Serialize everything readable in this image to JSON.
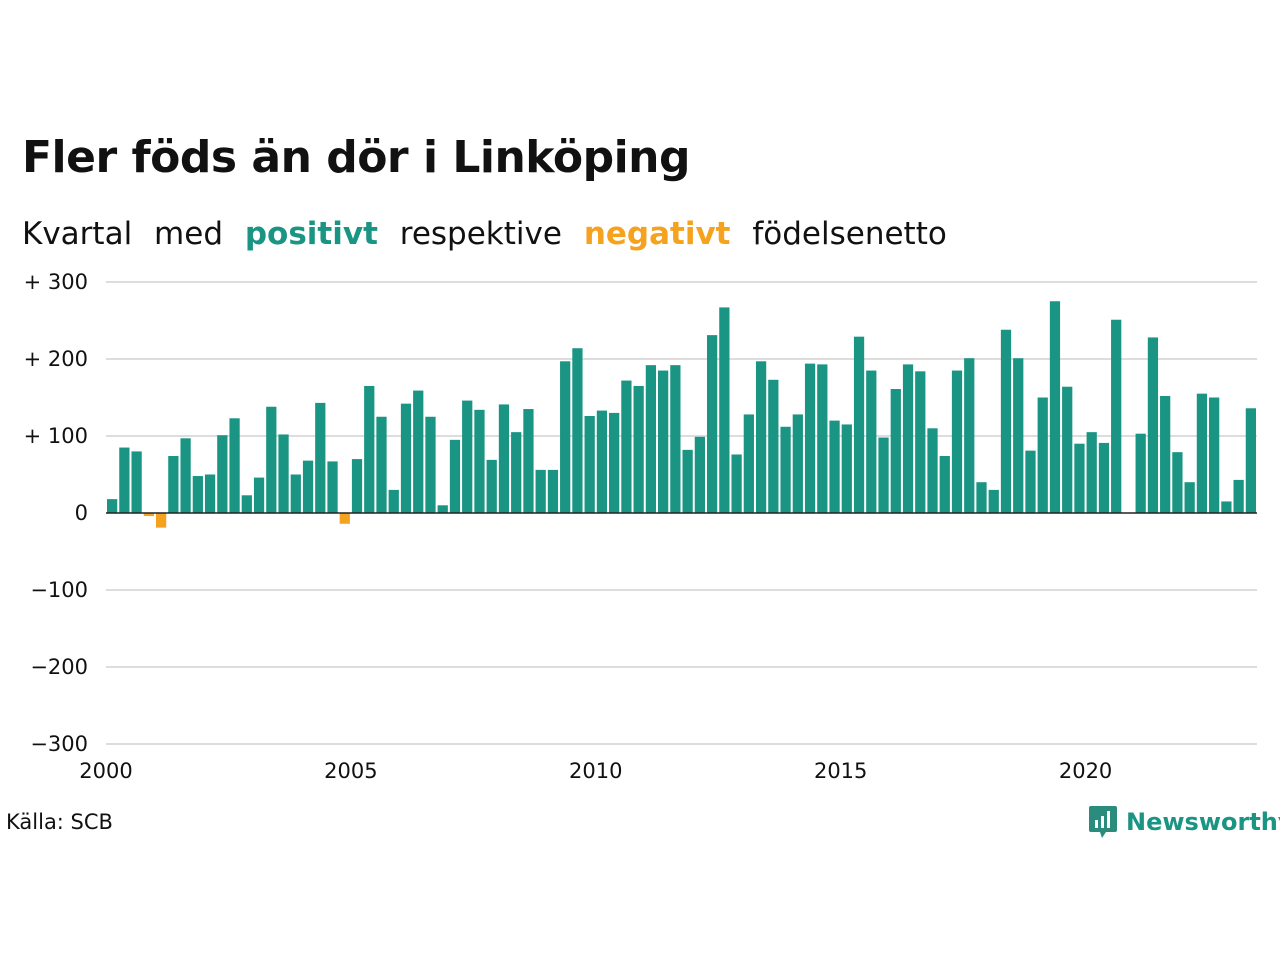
{
  "title": "Fler föds än dör i Linköping",
  "subtitle": {
    "w1": "Kvartal",
    "w2": "med",
    "positive": "positivt",
    "w3": "respektive",
    "negative": "negativt",
    "w4": "födelsenetto"
  },
  "colors": {
    "positive": "#1a9483",
    "negative": "#f5a21f",
    "grid": "#dddddd",
    "text": "#111111"
  },
  "source": "Källa: SCB",
  "logo": {
    "text": "Newsworthy",
    "icon": "bar-chart-speech-bubble-icon"
  },
  "chart_data": {
    "type": "bar",
    "xlabel": "",
    "ylabel": "",
    "ylim": [
      -300,
      300
    ],
    "yticks": [
      {
        "value": 300,
        "label": "+ 300"
      },
      {
        "value": 200,
        "label": "+ 200"
      },
      {
        "value": 100,
        "label": "+ 100"
      },
      {
        "value": 0,
        "label": "0"
      },
      {
        "value": -100,
        "label": "−100"
      },
      {
        "value": -200,
        "label": "−200"
      },
      {
        "value": -300,
        "label": "−300"
      }
    ],
    "xticks": [
      "2000",
      "2005",
      "2010",
      "2015",
      "2020"
    ],
    "xlim": [
      "2000 Q1",
      "2023 Q2"
    ],
    "grid": true,
    "series": [
      {
        "x": [
          "2000 Q1",
          "2000 Q2",
          "2000 Q3",
          "2000 Q4",
          "2001 Q1",
          "2001 Q2",
          "2001 Q3",
          "2001 Q4",
          "2002 Q1",
          "2002 Q2",
          "2002 Q3",
          "2002 Q4",
          "2003 Q1",
          "2003 Q2",
          "2003 Q3",
          "2003 Q4",
          "2004 Q1",
          "2004 Q2",
          "2004 Q3",
          "2004 Q4",
          "2005 Q1",
          "2005 Q2",
          "2005 Q3",
          "2005 Q4",
          "2006 Q1",
          "2006 Q2",
          "2006 Q3",
          "2006 Q4",
          "2007 Q1",
          "2007 Q2",
          "2007 Q3",
          "2007 Q4",
          "2008 Q1",
          "2008 Q2",
          "2008 Q3",
          "2008 Q4",
          "2009 Q1",
          "2009 Q2",
          "2009 Q3",
          "2009 Q4",
          "2010 Q1",
          "2010 Q2",
          "2010 Q3",
          "2010 Q4",
          "2011 Q1",
          "2011 Q2",
          "2011 Q3",
          "2011 Q4",
          "2012 Q1",
          "2012 Q2",
          "2012 Q3",
          "2012 Q4",
          "2013 Q1",
          "2013 Q2",
          "2013 Q3",
          "2013 Q4",
          "2014 Q1",
          "2014 Q2",
          "2014 Q3",
          "2014 Q4",
          "2015 Q1",
          "2015 Q2",
          "2015 Q3",
          "2015 Q4",
          "2016 Q1",
          "2016 Q2",
          "2016 Q3",
          "2016 Q4",
          "2017 Q1",
          "2017 Q2",
          "2017 Q3",
          "2017 Q4",
          "2018 Q1",
          "2018 Q2",
          "2018 Q3",
          "2018 Q4",
          "2019 Q1",
          "2019 Q2",
          "2019 Q3",
          "2019 Q4",
          "2020 Q1",
          "2020 Q2",
          "2020 Q3",
          "2020 Q4",
          "2021 Q1",
          "2021 Q2",
          "2021 Q3",
          "2021 Q4",
          "2022 Q1",
          "2022 Q2",
          "2022 Q3",
          "2022 Q4",
          "2023 Q1",
          "2023 Q2"
        ],
        "values": [
          18,
          85,
          80,
          -4,
          -19,
          74,
          97,
          48,
          50,
          101,
          123,
          23,
          46,
          138,
          102,
          50,
          68,
          143,
          67,
          -14,
          70,
          165,
          125,
          30,
          142,
          159,
          125,
          10,
          95,
          146,
          134,
          69,
          141,
          105,
          135,
          56,
          56,
          197,
          214,
          126,
          133,
          130,
          172,
          165,
          192,
          185,
          192,
          82,
          99,
          231,
          267,
          76,
          128,
          197,
          173,
          112,
          128,
          194,
          193,
          120,
          115,
          229,
          185,
          98,
          161,
          193,
          184,
          110,
          74,
          185,
          201,
          40,
          30,
          238,
          201,
          81,
          150,
          275,
          164,
          90,
          105,
          91,
          251,
          0,
          103,
          228,
          152,
          79,
          40,
          155,
          150,
          15,
          43,
          136
        ]
      }
    ]
  }
}
